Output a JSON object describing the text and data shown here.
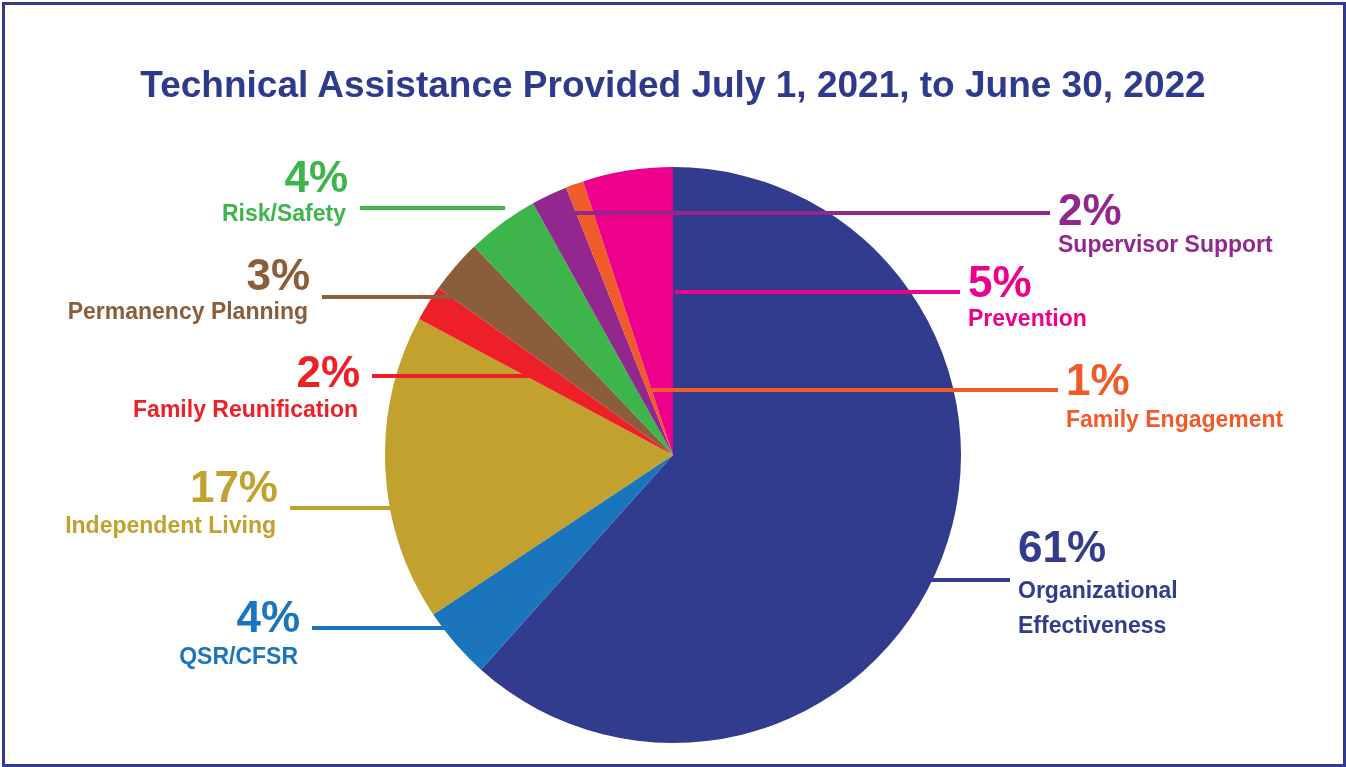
{
  "chart_data": {
    "type": "pie",
    "title": "Technical Assistance Provided July 1, 2021, to June 30, 2022",
    "categories": [
      "Organizational Effectiveness",
      "QSR/CFSR",
      "Independent Living",
      "Family Reunification",
      "Permanency Planning",
      "Risk/Safety",
      "Supervisor Support",
      "Family Engagement",
      "Prevention"
    ],
    "values": [
      61,
      4,
      17,
      2,
      3,
      4,
      2,
      1,
      5
    ],
    "colors": [
      "#323c8e",
      "#1a75bc",
      "#c2a12f",
      "#ed2027",
      "#8a5d3b",
      "#3db54a",
      "#92278f",
      "#f15a29",
      "#ec008c"
    ],
    "value_labels": [
      "61%",
      "4%",
      "17%",
      "2%",
      "3%",
      "4%",
      "2%",
      "1%",
      "5%"
    ],
    "legend": false
  }
}
